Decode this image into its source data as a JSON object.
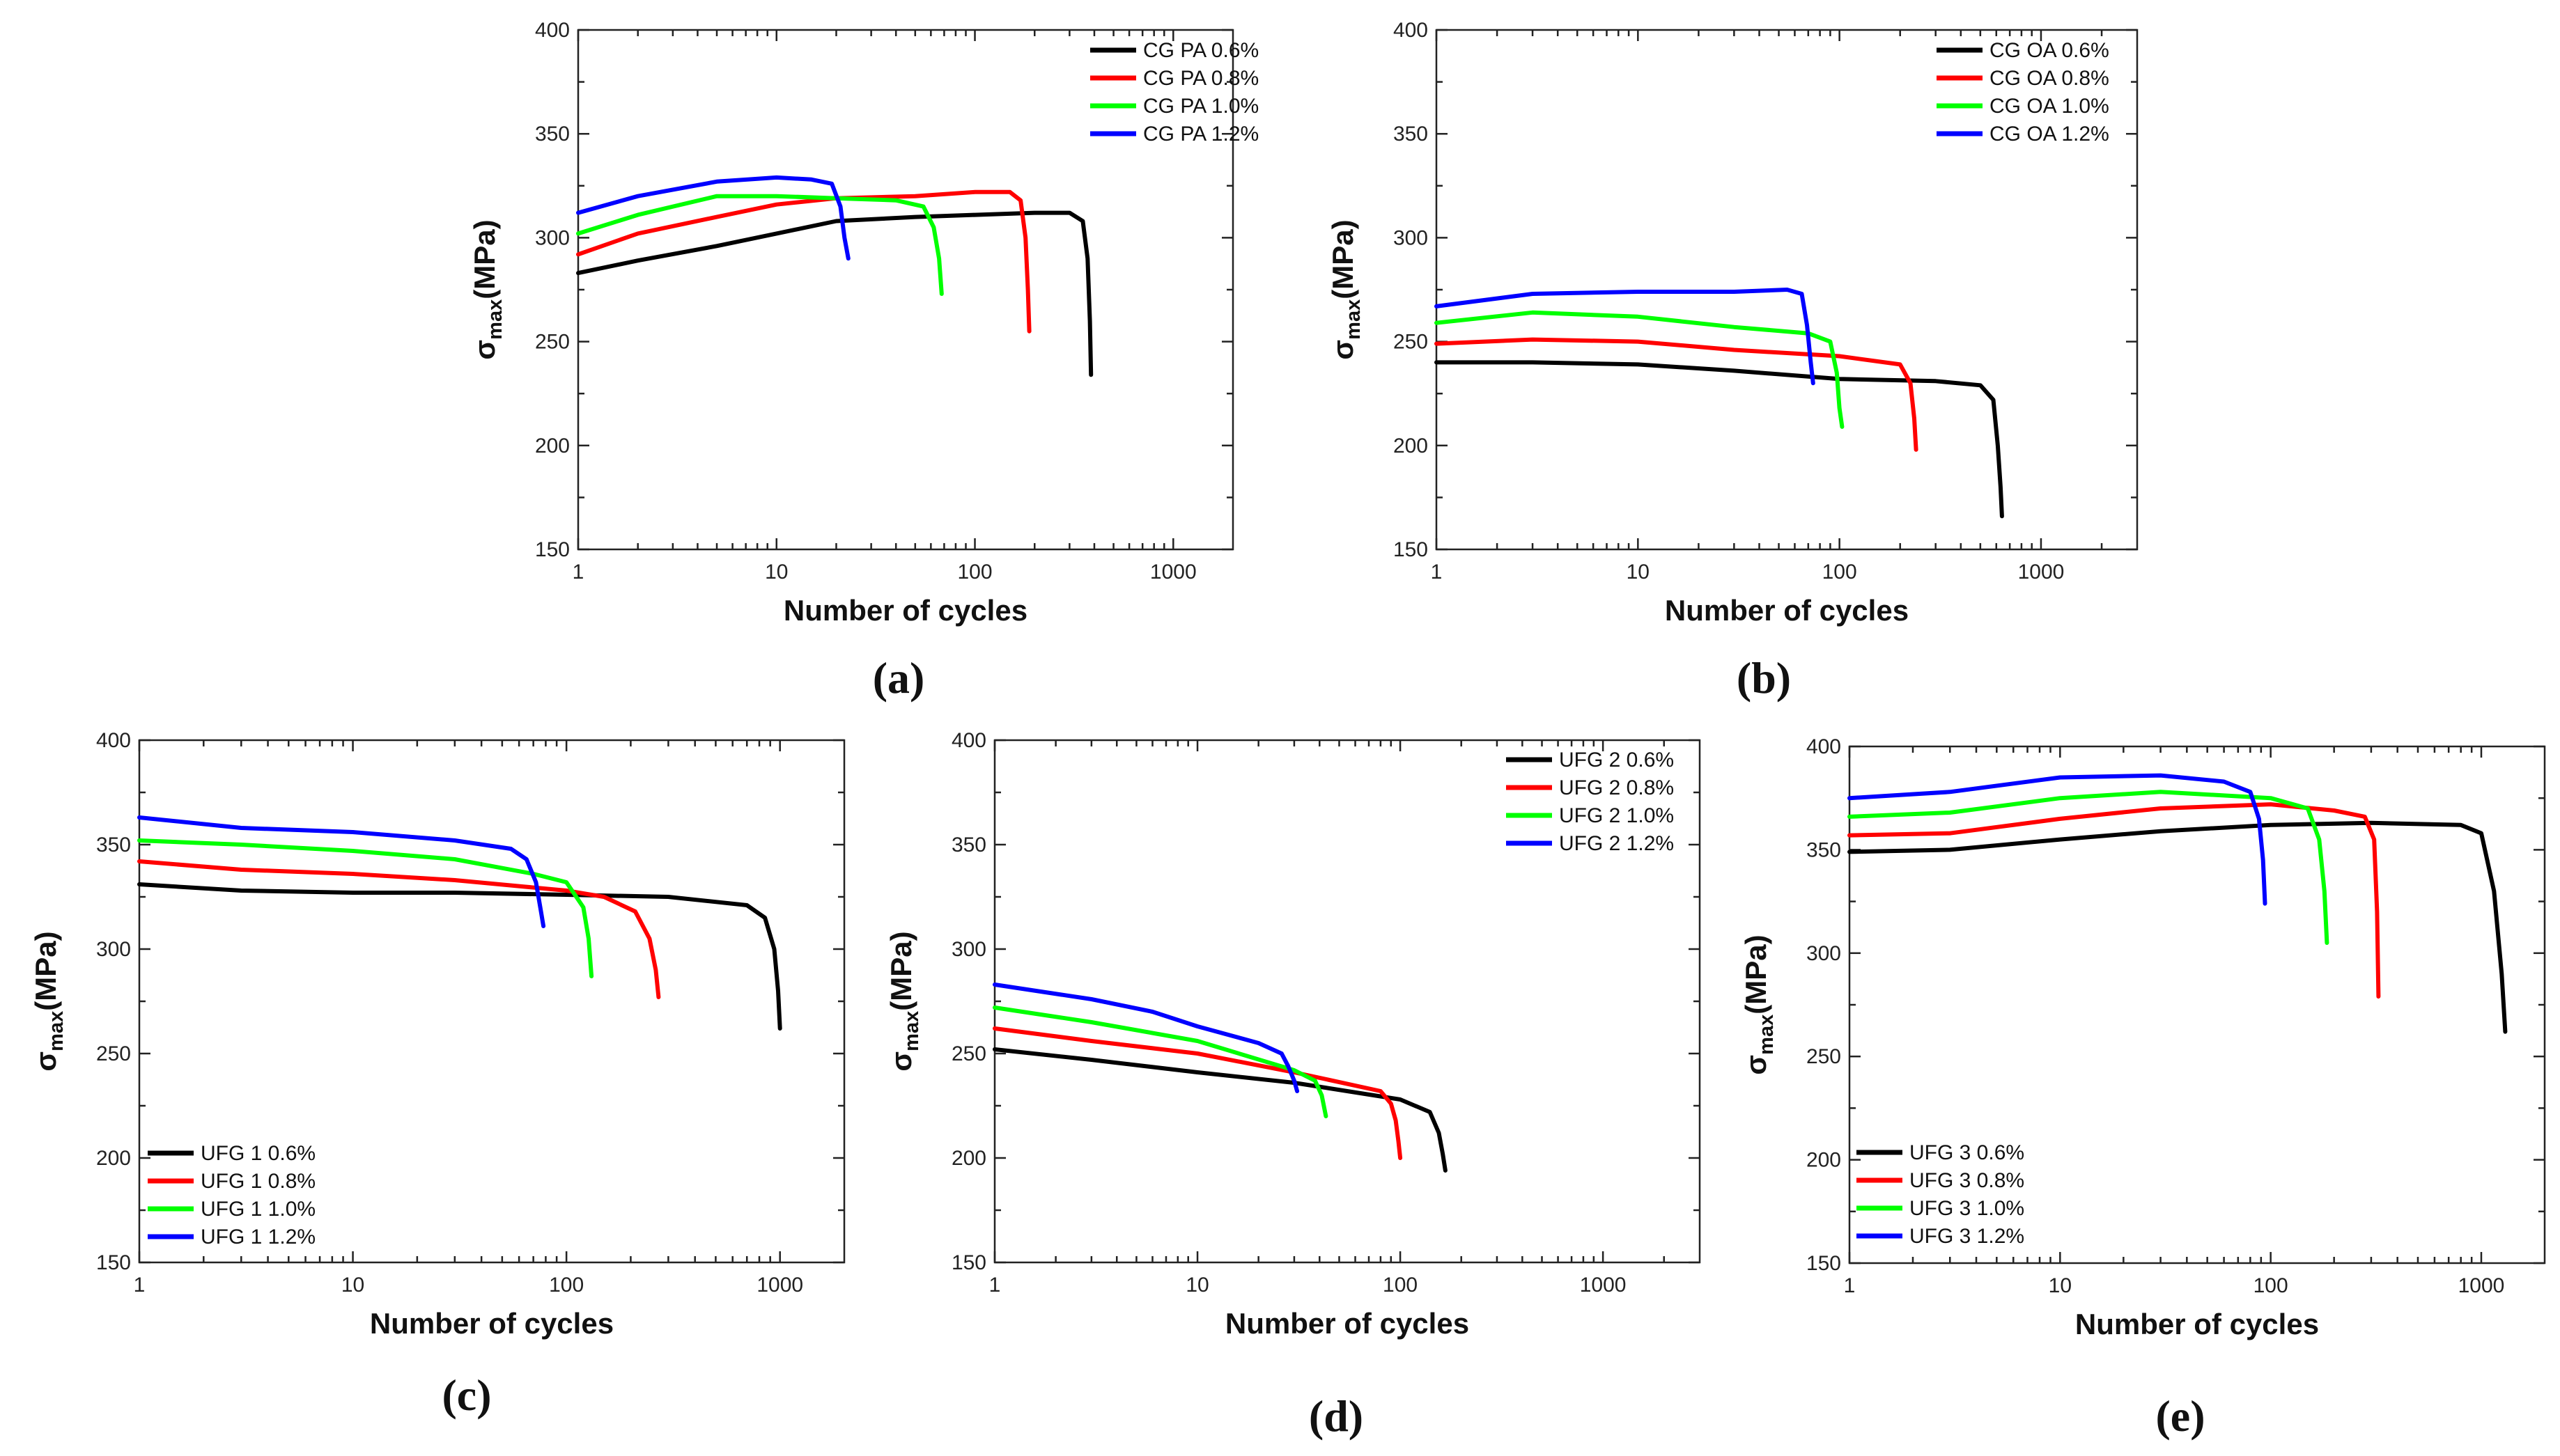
{
  "colors": {
    "s06": "#000000",
    "s08": "#ff0000",
    "s10": "#00ff00",
    "s12": "#0000ff"
  },
  "chart_data": [
    {
      "type": "line",
      "panel_label": "(a)",
      "xlabel": "Number of cycles",
      "ylabel": {
        "main": "σ",
        "sub": "max",
        "unit": "(MPa)"
      },
      "x_scale": "log",
      "xlim": [
        1,
        2000
      ],
      "ylim": [
        150,
        400
      ],
      "x_ticks": [
        1,
        10,
        100,
        1000
      ],
      "x_tick_labels": [
        "1",
        "10",
        "100",
        "1000"
      ],
      "y_ticks": [
        150,
        200,
        250,
        300,
        350,
        400
      ],
      "y_tick_labels": [
        "150",
        "200",
        "250",
        "300",
        "350",
        "400"
      ],
      "legend_position": "top-right",
      "series": [
        {
          "name": "CG PA 0.6%",
          "color": "#000000",
          "x": [
            1,
            2,
            5,
            10,
            20,
            50,
            100,
            200,
            300,
            350,
            370,
            380,
            385
          ],
          "y": [
            283,
            289,
            296,
            302,
            308,
            310,
            311,
            312,
            312,
            308,
            290,
            260,
            234
          ]
        },
        {
          "name": "CG PA 0.8%",
          "color": "#ff0000",
          "x": [
            1,
            2,
            5,
            10,
            20,
            50,
            100,
            150,
            170,
            180,
            185,
            188
          ],
          "y": [
            292,
            302,
            310,
            316,
            319,
            320,
            322,
            322,
            318,
            300,
            275,
            255
          ]
        },
        {
          "name": "CG PA 1.0%",
          "color": "#00ff00",
          "x": [
            1,
            2,
            5,
            10,
            20,
            40,
            55,
            62,
            66,
            68
          ],
          "y": [
            302,
            311,
            320,
            320,
            319,
            318,
            315,
            305,
            290,
            273
          ]
        },
        {
          "name": "CG PA 1.2%",
          "color": "#0000ff",
          "x": [
            1,
            2,
            5,
            10,
            15,
            19,
            21,
            22,
            23
          ],
          "y": [
            312,
            320,
            327,
            329,
            328,
            326,
            315,
            300,
            290
          ]
        }
      ]
    },
    {
      "type": "line",
      "panel_label": "(b)",
      "xlabel": "Number of cycles",
      "ylabel": {
        "main": "σ",
        "sub": "max",
        "unit": "(MPa)"
      },
      "x_scale": "log",
      "xlim": [
        1,
        3000
      ],
      "ylim": [
        150,
        400
      ],
      "x_ticks": [
        1,
        10,
        100,
        1000
      ],
      "x_tick_labels": [
        "1",
        "10",
        "100",
        "1000"
      ],
      "y_ticks": [
        150,
        200,
        250,
        300,
        350,
        400
      ],
      "y_tick_labels": [
        "150",
        "200",
        "250",
        "300",
        "350",
        "400"
      ],
      "legend_position": "top-right",
      "series": [
        {
          "name": "CG OA 0.6%",
          "color": "#000000",
          "x": [
            1,
            3,
            10,
            30,
            100,
            300,
            500,
            580,
            610,
            630,
            640
          ],
          "y": [
            240,
            240,
            239,
            236,
            232,
            231,
            229,
            222,
            200,
            180,
            166
          ]
        },
        {
          "name": "CG OA 0.8%",
          "color": "#ff0000",
          "x": [
            1,
            3,
            10,
            30,
            100,
            200,
            225,
            235,
            240
          ],
          "y": [
            249,
            251,
            250,
            246,
            243,
            239,
            230,
            213,
            198
          ]
        },
        {
          "name": "CG OA 1.0%",
          "color": "#00ff00",
          "x": [
            1,
            3,
            10,
            30,
            70,
            90,
            97,
            100,
            103
          ],
          "y": [
            259,
            264,
            262,
            257,
            254,
            250,
            235,
            218,
            209
          ]
        },
        {
          "name": "CG OA 1.2%",
          "color": "#0000ff",
          "x": [
            1,
            3,
            10,
            30,
            55,
            65,
            69,
            72,
            74
          ],
          "y": [
            267,
            273,
            274,
            274,
            275,
            273,
            258,
            240,
            230
          ]
        }
      ]
    },
    {
      "type": "line",
      "panel_label": "(c)",
      "xlabel": "Number of cycles",
      "ylabel": {
        "main": "σ",
        "sub": "max",
        "unit": "(MPa)"
      },
      "x_scale": "log",
      "xlim": [
        1,
        2000
      ],
      "ylim": [
        150,
        400
      ],
      "x_ticks": [
        1,
        10,
        100,
        1000
      ],
      "x_tick_labels": [
        "1",
        "10",
        "100",
        "1000"
      ],
      "y_ticks": [
        150,
        200,
        250,
        300,
        350,
        400
      ],
      "y_tick_labels": [
        "150",
        "200",
        "250",
        "300",
        "350",
        "400"
      ],
      "legend_position": "bottom-left",
      "series": [
        {
          "name": "UFG 1 0.6%",
          "color": "#000000",
          "x": [
            1,
            3,
            10,
            30,
            100,
            300,
            700,
            850,
            940,
            980,
            1000
          ],
          "y": [
            331,
            328,
            327,
            327,
            326,
            325,
            321,
            315,
            300,
            280,
            262
          ]
        },
        {
          "name": "UFG 1 0.8%",
          "color": "#ff0000",
          "x": [
            1,
            3,
            10,
            30,
            100,
            150,
            210,
            245,
            262,
            270
          ],
          "y": [
            342,
            338,
            336,
            333,
            328,
            325,
            318,
            305,
            290,
            277
          ]
        },
        {
          "name": "UFG 1 1.0%",
          "color": "#00ff00",
          "x": [
            1,
            3,
            10,
            30,
            70,
            100,
            120,
            127,
            131
          ],
          "y": [
            352,
            350,
            347,
            343,
            336,
            332,
            320,
            305,
            287
          ]
        },
        {
          "name": "UFG 1 1.2%",
          "color": "#0000ff",
          "x": [
            1,
            3,
            10,
            30,
            55,
            65,
            72,
            76,
            78
          ],
          "y": [
            363,
            358,
            356,
            352,
            348,
            343,
            332,
            318,
            311
          ]
        }
      ]
    },
    {
      "type": "line",
      "panel_label": "(d)",
      "xlabel": "Number of cycles",
      "ylabel": {
        "main": "σ",
        "sub": "max",
        "unit": "(MPa)"
      },
      "x_scale": "log",
      "xlim": [
        1,
        3000
      ],
      "ylim": [
        150,
        400
      ],
      "x_ticks": [
        1,
        10,
        100,
        1000
      ],
      "x_tick_labels": [
        "1",
        "10",
        "100",
        "1000"
      ],
      "y_ticks": [
        150,
        200,
        250,
        300,
        350,
        400
      ],
      "y_tick_labels": [
        "150",
        "200",
        "250",
        "300",
        "350",
        "400"
      ],
      "legend_position": "top-right",
      "series": [
        {
          "name": "UFG 2 0.6%",
          "color": "#000000",
          "x": [
            1,
            3,
            10,
            30,
            100,
            140,
            155,
            162,
            167
          ],
          "y": [
            252,
            247,
            241,
            236,
            228,
            222,
            212,
            202,
            194
          ]
        },
        {
          "name": "UFG 2 0.8%",
          "color": "#ff0000",
          "x": [
            1,
            3,
            10,
            30,
            80,
            90,
            95,
            98,
            100
          ],
          "y": [
            262,
            256,
            250,
            241,
            232,
            226,
            218,
            208,
            200
          ]
        },
        {
          "name": "UFG 2 1.0%",
          "color": "#00ff00",
          "x": [
            1,
            3,
            10,
            30,
            38,
            41,
            43
          ],
          "y": [
            272,
            265,
            256,
            242,
            237,
            230,
            220
          ]
        },
        {
          "name": "UFG 2 1.2%",
          "color": "#0000ff",
          "x": [
            1,
            3,
            6,
            10,
            20,
            26,
            28,
            30,
            31
          ],
          "y": [
            283,
            276,
            270,
            263,
            255,
            250,
            244,
            237,
            232
          ]
        }
      ]
    },
    {
      "type": "line",
      "panel_label": "(e)",
      "xlabel": "Number of cycles",
      "ylabel": {
        "main": "σ",
        "sub": "max",
        "unit": "(MPa)"
      },
      "x_scale": "log",
      "xlim": [
        1,
        2000
      ],
      "ylim": [
        150,
        400
      ],
      "x_ticks": [
        1,
        10,
        100,
        1000
      ],
      "x_tick_labels": [
        "1",
        "10",
        "100",
        "1000"
      ],
      "y_ticks": [
        150,
        200,
        250,
        300,
        350,
        400
      ],
      "y_tick_labels": [
        "150",
        "200",
        "250",
        "300",
        "350",
        "400"
      ],
      "legend_position": "bottom-left",
      "series": [
        {
          "name": "UFG 3 0.6%",
          "color": "#000000",
          "x": [
            1,
            3,
            10,
            30,
            100,
            300,
            800,
            1000,
            1150,
            1250,
            1300
          ],
          "y": [
            349,
            350,
            355,
            359,
            362,
            363,
            362,
            358,
            330,
            290,
            262
          ]
        },
        {
          "name": "UFG 3 0.8%",
          "color": "#ff0000",
          "x": [
            1,
            3,
            10,
            30,
            100,
            200,
            280,
            310,
            320,
            325
          ],
          "y": [
            357,
            358,
            365,
            370,
            372,
            369,
            366,
            355,
            320,
            279
          ]
        },
        {
          "name": "UFG 3 1.0%",
          "color": "#00ff00",
          "x": [
            1,
            3,
            10,
            30,
            100,
            150,
            170,
            180,
            185
          ],
          "y": [
            366,
            368,
            375,
            378,
            375,
            370,
            355,
            330,
            305
          ]
        },
        {
          "name": "UFG 3 1.2%",
          "color": "#0000ff",
          "x": [
            1,
            3,
            10,
            30,
            60,
            80,
            88,
            92,
            94
          ],
          "y": [
            375,
            378,
            385,
            386,
            383,
            378,
            365,
            345,
            324
          ]
        }
      ]
    }
  ]
}
